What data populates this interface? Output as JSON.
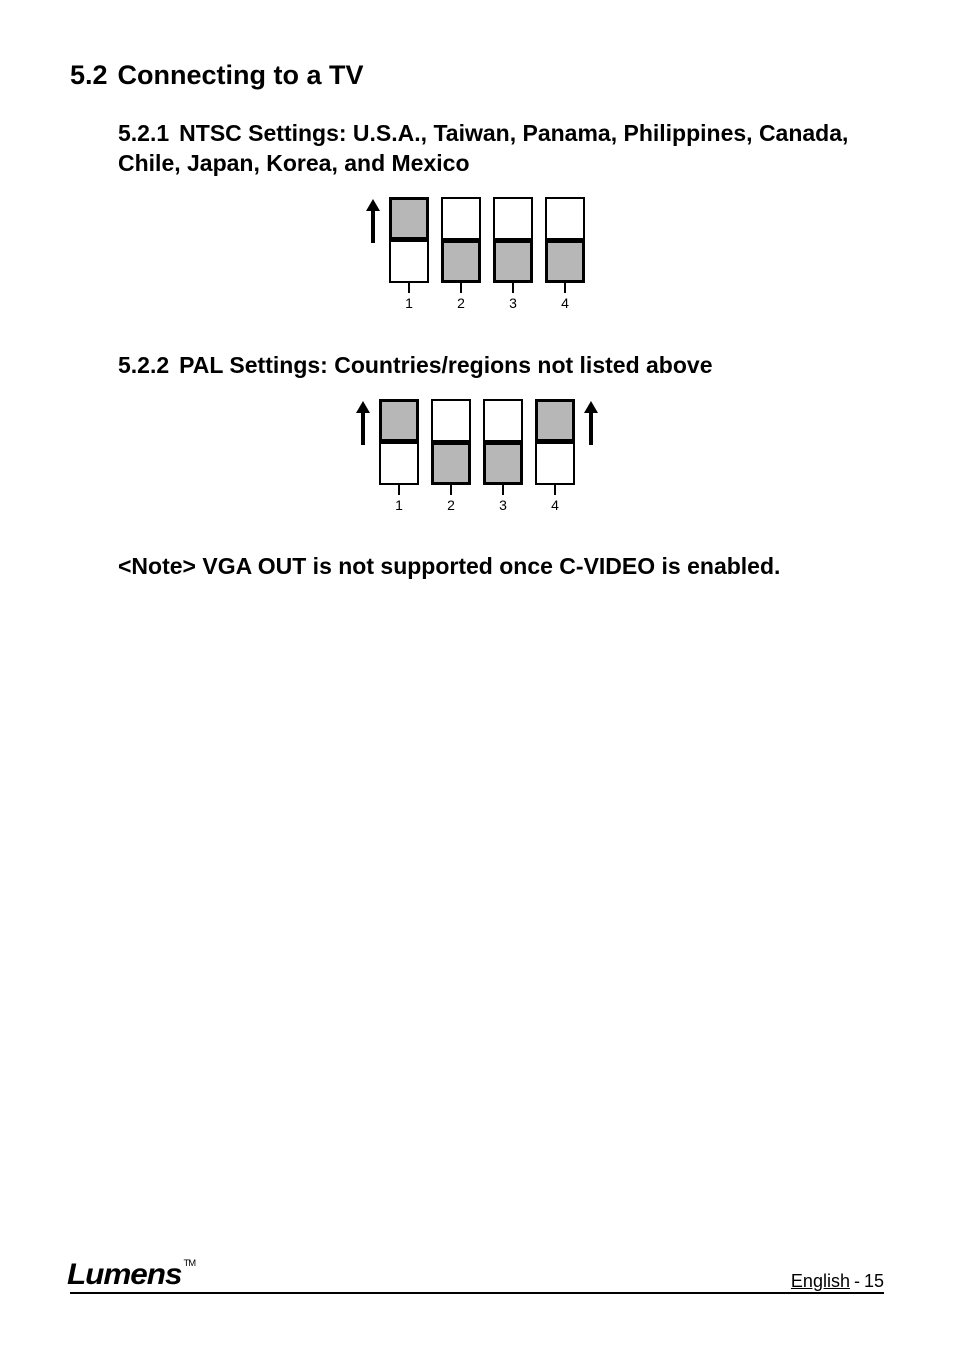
{
  "section": {
    "number": "5.2",
    "title": "Connecting to a TV"
  },
  "sub1": {
    "number": "5.2.1",
    "title": "NTSC Settings: U.S.A., Taiwan, Panama, Philippines, Canada, Chile, Japan, Korea, and Mexico"
  },
  "sub2": {
    "number": "5.2.2",
    "title": "PAL Settings: Countries/regions not listed above"
  },
  "note": "<Note> VGA OUT is not supported once C-VIDEO is enabled.",
  "dip_ntsc": {
    "arrow_left": true,
    "arrow_right": false,
    "switches": [
      {
        "label": "1",
        "position": "up"
      },
      {
        "label": "2",
        "position": "down"
      },
      {
        "label": "3",
        "position": "down"
      },
      {
        "label": "4",
        "position": "down"
      }
    ],
    "colors": {
      "slider": "#b7b7b7",
      "slot_bg": "#ffffff",
      "border": "#000000"
    }
  },
  "dip_pal": {
    "arrow_left": true,
    "arrow_right": true,
    "switches": [
      {
        "label": "1",
        "position": "up"
      },
      {
        "label": "2",
        "position": "down"
      },
      {
        "label": "3",
        "position": "down"
      },
      {
        "label": "4",
        "position": "up"
      }
    ],
    "colors": {
      "slider": "#b7b7b7",
      "slot_bg": "#ffffff",
      "border": "#000000"
    }
  },
  "footer": {
    "brand": "Lumens",
    "tm": "TM",
    "language": "English",
    "separator": "-",
    "page": "15"
  }
}
